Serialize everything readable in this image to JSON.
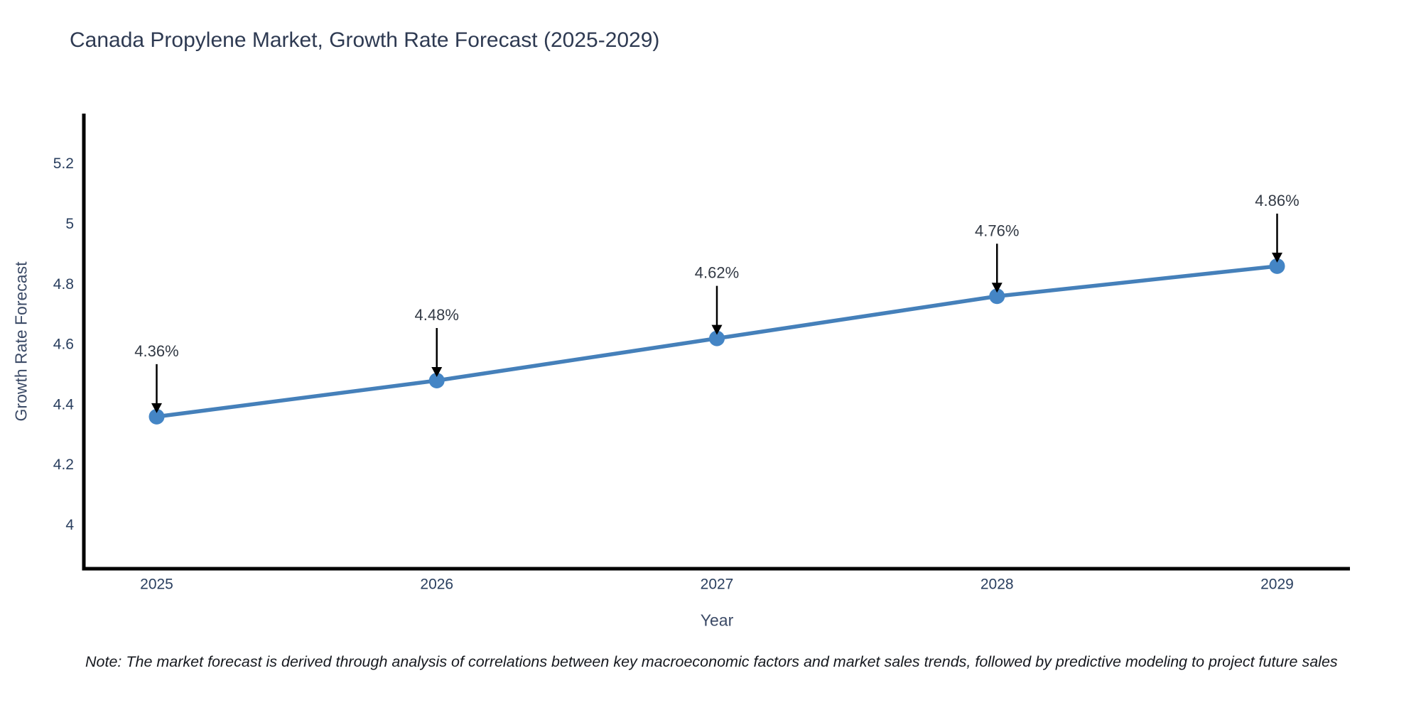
{
  "chart_data": {
    "type": "line",
    "title": "Canada Propylene Market, Growth Rate Forecast (2025-2029)",
    "xlabel": "Year",
    "ylabel": "Growth Rate Forecast",
    "x": [
      2025,
      2026,
      2027,
      2028,
      2029
    ],
    "series": [
      {
        "name": "Growth Rate Forecast",
        "values": [
          4.36,
          4.48,
          4.62,
          4.76,
          4.86
        ]
      }
    ],
    "point_labels": [
      "4.36%",
      "4.48%",
      "4.62%",
      "4.76%",
      "4.86%"
    ],
    "x_tick_labels": [
      "2025",
      "2026",
      "2027",
      "2028",
      "2029"
    ],
    "y_tick_values": [
      4,
      4.2,
      4.4,
      4.6,
      4.8,
      5,
      5.2
    ],
    "y_tick_labels": [
      "4",
      "4.2",
      "4.4",
      "4.6",
      "4.8",
      "5",
      "5.2"
    ],
    "xlim": [
      2024.74,
      2029.26
    ],
    "ylim": [
      3.855,
      5.362
    ],
    "grid": false,
    "legend": "none",
    "line_color": "#4580ba",
    "marker_color": "#4485c5",
    "arrow_color": "#000000",
    "axis_color": "#000000",
    "note": "Note: The market forecast is derived through analysis of correlations between key macroeconomic factors and market sales trends, followed by predictive modeling to project future sales"
  }
}
